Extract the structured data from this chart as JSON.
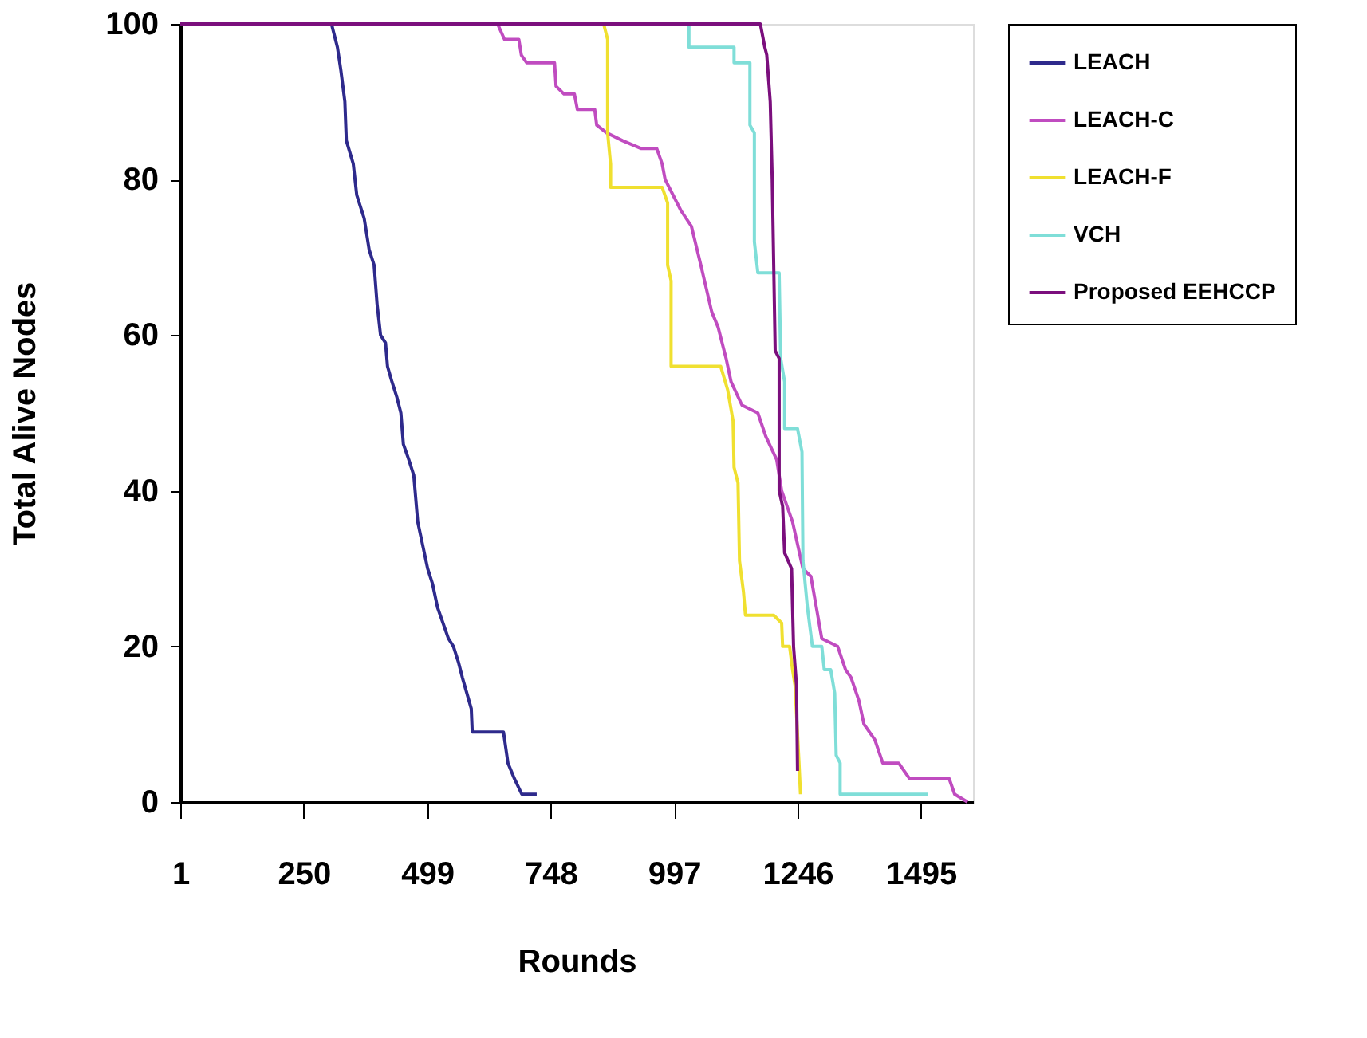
{
  "chart_data": {
    "type": "line",
    "xlabel": "Rounds",
    "ylabel": "Total Alive Nodes",
    "xlim": [
      1,
      1600
    ],
    "xticks": [
      1,
      250,
      499,
      748,
      997,
      1246,
      1495
    ],
    "ylim": [
      0,
      100
    ],
    "yticks": [
      0,
      20,
      40,
      60,
      80,
      100
    ],
    "grid": false,
    "legend": "right",
    "series": [
      {
        "name": "LEACH",
        "color": "#2e2a8c",
        "x": [
          1,
          306,
          318,
          325,
          333,
          336,
          350,
          357,
          372,
          382,
          392,
          398,
          405,
          415,
          419,
          428,
          438,
          446,
          451,
          462,
          472,
          476,
          480,
          490,
          500,
          510,
          520,
          542,
          552,
          562,
          570,
          588,
          590,
          653,
          662,
          675,
          690,
          720
        ],
        "values": [
          100,
          100,
          97,
          94,
          90,
          85,
          82,
          78,
          75,
          71,
          69,
          64,
          60,
          59,
          56,
          54,
          52,
          50,
          46,
          44,
          42,
          39,
          36,
          33,
          30,
          28,
          25,
          21,
          20,
          18,
          16,
          12,
          9,
          9,
          5,
          3,
          1,
          1
        ]
      },
      {
        "name": "LEACH-C",
        "color": "#c04cc0",
        "x": [
          1,
          641,
          655,
          684,
          689,
          700,
          756,
          759,
          775,
          796,
          802,
          807,
          837,
          841,
          861,
          893,
          930,
          962,
          973,
          979,
          995,
          1011,
          1032,
          1051,
          1062,
          1073,
          1086,
          1102,
          1112,
          1134,
          1166,
          1182,
          1204,
          1214,
          1236,
          1257,
          1273,
          1284,
          1295,
          1327,
          1343,
          1354,
          1370,
          1380,
          1402,
          1418,
          1450,
          1472,
          1552,
          1563,
          1589
        ],
        "values": [
          100,
          100,
          98,
          98,
          96,
          95,
          95,
          92,
          91,
          91,
          89,
          89,
          89,
          87,
          86,
          85,
          84,
          84,
          82,
          80,
          78,
          76,
          74,
          69,
          66,
          63,
          61,
          57,
          54,
          51,
          50,
          47,
          44,
          40,
          36,
          30,
          29,
          25,
          21,
          20,
          17,
          16,
          13,
          10,
          8,
          5,
          5,
          3,
          3,
          1,
          0
        ]
      },
      {
        "name": "LEACH-F",
        "color": "#f0e030",
        "x": [
          1,
          855,
          863,
          863,
          869,
          869,
          973,
          984,
          984,
          991,
          991,
          1091,
          1105,
          1116,
          1118,
          1126,
          1129,
          1137,
          1141,
          1198,
          1214,
          1216,
          1230,
          1236,
          1241,
          1249,
          1252
        ],
        "values": [
          100,
          100,
          98,
          86,
          82,
          79,
          79,
          77,
          69,
          67,
          56,
          56,
          53,
          49,
          43,
          41,
          31,
          27,
          24,
          24,
          23,
          20,
          20,
          17,
          15,
          5,
          1
        ]
      },
      {
        "name": "VCH",
        "color": "#7fded8",
        "x": [
          1,
          1027,
          1027,
          1118,
          1118,
          1150,
          1150,
          1159,
          1159,
          1166,
          1209,
          1212,
          1220,
          1220,
          1246,
          1255,
          1257,
          1266,
          1276,
          1295,
          1300,
          1313,
          1321,
          1324,
          1332,
          1332,
          1509
        ],
        "values": [
          100,
          100,
          97,
          97,
          95,
          95,
          87,
          86,
          72,
          68,
          68,
          57,
          54,
          48,
          48,
          45,
          31,
          25,
          20,
          20,
          17,
          17,
          14,
          6,
          5,
          1,
          1
        ]
      },
      {
        "name": "Proposed EEHCCP",
        "color": "#7b0f7d",
        "x": [
          1,
          1171,
          1180,
          1184,
          1191,
          1195,
          1201,
          1209,
          1209,
          1216,
          1220,
          1234,
          1238,
          1244,
          1246
        ],
        "values": [
          100,
          100,
          97,
          96,
          90,
          80,
          58,
          57,
          40,
          38,
          32,
          30,
          20,
          15,
          4
        ]
      }
    ]
  }
}
